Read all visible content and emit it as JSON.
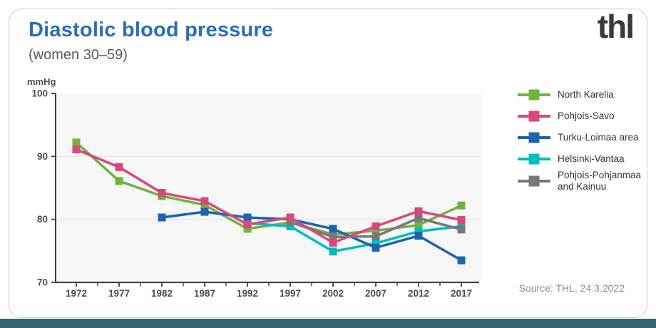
{
  "header": {
    "title": "Diastolic blood pressure",
    "subtitle": "(women 30–59)",
    "logo": "thl"
  },
  "chart_data": {
    "type": "line",
    "title": "Diastolic blood pressure",
    "subtitle": "(women 30–59)",
    "ylabel": "mmHg",
    "x": [
      1972,
      1977,
      1982,
      1987,
      1992,
      1997,
      2002,
      2007,
      2012,
      2017
    ],
    "ylim": [
      70,
      100
    ],
    "yticks": [
      70,
      80,
      90,
      100
    ],
    "gridlines_at": [
      80,
      90
    ],
    "legend_position": "right",
    "series": [
      {
        "name": "North Karelia",
        "color": "#6eb43f",
        "values": [
          92.2,
          86.1,
          83.7,
          82.3,
          78.5,
          79.5,
          77.6,
          78.2,
          79.1,
          82.2
        ]
      },
      {
        "name": "Pohjois-Savo",
        "color": "#d9487b",
        "values": [
          91.1,
          88.3,
          84.2,
          82.9,
          79.2,
          80.3,
          76.3,
          78.9,
          81.3,
          79.9
        ]
      },
      {
        "name": "Turku-Loimaa area",
        "color": "#1e63ae",
        "values": [
          null,
          null,
          80.3,
          81.2,
          80.3,
          80.0,
          78.5,
          75.5,
          77.4,
          73.5
        ]
      },
      {
        "name": "Helsinki-Vantaa",
        "color": "#00bdbf",
        "values": [
          null,
          null,
          null,
          null,
          79.4,
          78.9,
          74.9,
          76.2,
          78.1,
          78.9
        ]
      },
      {
        "name": "Pohjois-Pohjanmaa and Kainuu",
        "color": "#77787a",
        "values": [
          null,
          null,
          null,
          null,
          null,
          79.6,
          77.2,
          77.3,
          80.2,
          78.4
        ]
      }
    ]
  },
  "footer": {
    "source": "Source: THL, 24.3.2022"
  },
  "colors": {
    "title": "#2a6ebb",
    "logo": "#353b41",
    "bottom_bar": "#356470",
    "plot_background": "#f7f7f8",
    "gridline": "#e8e8ea",
    "axis": "#3d3d3d",
    "tick_label": "#4f4f4f"
  }
}
